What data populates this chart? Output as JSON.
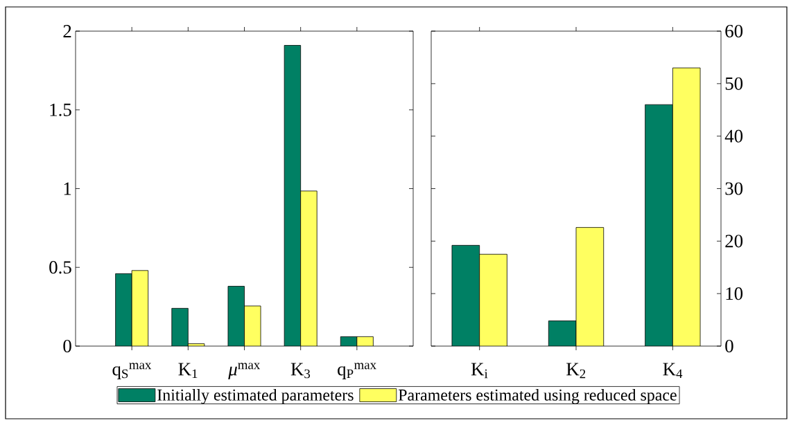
{
  "chart_data": [
    {
      "type": "bar",
      "categories": [
        "q$_{S}$$^{max}$",
        "K$_{1}$",
        "*μ*$^{max}$",
        "K$_{3}$",
        "q$_{P}$$^{max}$"
      ],
      "series": [
        {
          "name": "Initially estimated parameters",
          "color": "#008064",
          "values": [
            0.46,
            0.24,
            0.38,
            1.91,
            0.06
          ]
        },
        {
          "name": "Parameters estimated using reduced space",
          "color": "#ffff60",
          "values": [
            0.48,
            0.015,
            0.255,
            0.985,
            0.06
          ]
        }
      ],
      "ylim": [
        0,
        2
      ],
      "yticks": [
        0,
        0.5,
        1,
        1.5,
        2
      ],
      "legend": "bottom"
    },
    {
      "type": "bar",
      "categories": [
        "K$_{i}$",
        "K$_{2}$",
        "K$_{4}$"
      ],
      "series": [
        {
          "color": "#008064",
          "values": [
            19.2,
            4.8,
            46
          ],
          "axis": "y2"
        },
        {
          "color": "#ffff60",
          "values": [
            17.5,
            22.6,
            53
          ],
          "axis": "y2"
        }
      ],
      "y2lim": [
        0,
        60
      ],
      "y2ticks": [
        0,
        10,
        20,
        30,
        40,
        50,
        60
      ]
    }
  ]
}
